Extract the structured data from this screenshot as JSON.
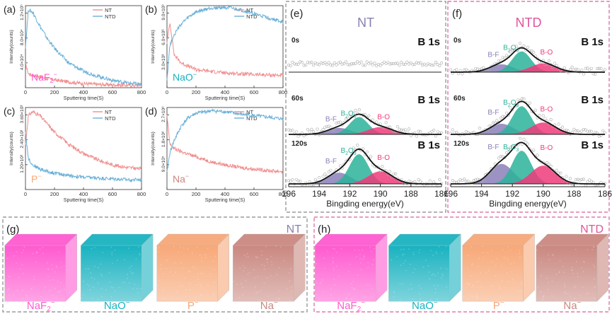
{
  "colors": {
    "nt": "#f08e8e",
    "ntd": "#6ab0d8",
    "bf": "#8b7fb8",
    "b2o3": "#2bb39a",
    "bo": "#ef3b7a",
    "naf2": "#ff5ad0",
    "nao": "#18b2c0",
    "p": "#f7a878",
    "na": "#c98880",
    "dash_nt": "#888888",
    "dash_ntd": "#d9609b",
    "label_nt": "#8a7fb0",
    "label_ntd": "#e0559a"
  },
  "tof_panels": [
    {
      "id": "a",
      "label": "(a)",
      "ion": "NaF2",
      "ion_sup": "−",
      "ylabel": "Intensity(counts)",
      "xlabel": "Sputtering time(S)",
      "xticks": [
        0,
        200,
        400,
        600,
        800
      ],
      "yticks": [
        "4.0×10⁴",
        "8.0×10⁴",
        "1.2×10⁵"
      ],
      "legend": [
        "NT",
        "NTD"
      ]
    },
    {
      "id": "b",
      "label": "(b)",
      "ion": "NaO",
      "ion_sup": "−",
      "ylabel": "Intensity(counts)",
      "xlabel": "Sputtering time(S)",
      "xticks": [
        0,
        200,
        400,
        600,
        800
      ],
      "yticks": [
        "3.0×10³",
        "6.0×10³",
        "9.0×10³"
      ],
      "legend": [
        "NT",
        "NTD"
      ]
    },
    {
      "id": "c",
      "label": "(c)",
      "ion": "P",
      "ion_sup": "−",
      "ylabel": "Intensity(counts)",
      "xlabel": "Sputtering time(S)",
      "xticks": [
        0,
        200,
        400,
        600,
        800
      ],
      "yticks": [
        "1.20×10³",
        "2.40×10³",
        "3.60×10³"
      ],
      "legend": [
        "NT",
        "NTD"
      ]
    },
    {
      "id": "d",
      "label": "(d)",
      "ion": "Na",
      "ion_sup": "−",
      "ylabel": "Intensity(counts)",
      "xlabel": "Sputtering time(S)",
      "xticks": [
        0,
        200,
        400,
        600,
        800
      ],
      "yticks": [
        "9.0×10⁵",
        "1.8×10⁶",
        "2.7×10⁶"
      ],
      "legend": [
        "NT",
        "NTD"
      ]
    }
  ],
  "xps_panels": [
    {
      "id": "e",
      "label": "(e)",
      "title": "NT",
      "title_color": "label_nt",
      "xlabel": "Bingding energy(eV)",
      "xticks": [
        196,
        194,
        192,
        190,
        188,
        186
      ],
      "rows": [
        {
          "time": "0s",
          "orbital": "B 1s",
          "components": []
        },
        {
          "time": "60s",
          "orbital": "B 1s",
          "components": [
            "B-F",
            "B2O3",
            "B-O"
          ]
        },
        {
          "time": "120s",
          "orbital": "B 1s",
          "components": [
            "B-F",
            "B2O3",
            "B-O"
          ]
        }
      ]
    },
    {
      "id": "f",
      "label": "(f)",
      "title": "NTD",
      "title_color": "label_ntd",
      "xlabel": "Bingding energy(eV)",
      "xticks": [
        196,
        194,
        192,
        190,
        188,
        186
      ],
      "rows": [
        {
          "time": "0s",
          "orbital": "B 1s",
          "components": [
            "B-F",
            "B2O3",
            "B-O"
          ]
        },
        {
          "time": "60s",
          "orbital": "B 1s",
          "components": [
            "B-F",
            "B2O3",
            "B-O"
          ]
        },
        {
          "time": "120s",
          "orbital": "B 1s",
          "components": [
            "B-F",
            "B2O3",
            "B-O"
          ]
        }
      ]
    }
  ],
  "cube_panels": [
    {
      "id": "g",
      "label": "(g)",
      "title": "NT",
      "cubes": [
        {
          "ion": "NaF2",
          "sup": "−",
          "color": "naf2"
        },
        {
          "ion": "NaO",
          "sup": "−",
          "color": "nao"
        },
        {
          "ion": "P",
          "sup": "−",
          "color": "p"
        },
        {
          "ion": "Na",
          "sup": "−",
          "color": "na"
        }
      ]
    },
    {
      "id": "h",
      "label": "(h)",
      "title": "NTD",
      "cubes": [
        {
          "ion": "NaF2",
          "sup": "−",
          "color": "naf2"
        },
        {
          "ion": "NaO",
          "sup": "−",
          "color": "nao"
        },
        {
          "ion": "P",
          "sup": "−",
          "color": "p"
        },
        {
          "ion": "Na",
          "sup": "−",
          "color": "na"
        }
      ]
    }
  ],
  "chart_data": [
    {
      "type": "line",
      "panel": "a",
      "x": [
        0,
        20,
        50,
        100,
        150,
        200,
        300,
        400,
        500,
        600,
        700,
        800
      ],
      "series": [
        {
          "name": "NT",
          "values": [
            0.29,
            0.17,
            0.15,
            0.13,
            0.11,
            0.095,
            0.07,
            0.05,
            0.04,
            0.035,
            0.03,
            0.03
          ]
        },
        {
          "name": "NTD",
          "values": [
            0.5,
            0.95,
            0.92,
            0.75,
            0.6,
            0.48,
            0.3,
            0.2,
            0.14,
            0.09,
            0.06,
            0.04
          ]
        }
      ]
    },
    {
      "type": "line",
      "panel": "b",
      "x": [
        0,
        20,
        50,
        100,
        150,
        200,
        300,
        400,
        500,
        600,
        700,
        800
      ],
      "series": [
        {
          "name": "NT",
          "values": [
            0.55,
            0.8,
            0.4,
            0.3,
            0.26,
            0.22,
            0.2,
            0.18,
            0.17,
            0.16,
            0.155,
            0.15
          ]
        },
        {
          "name": "NTD",
          "values": [
            0.1,
            0.52,
            0.65,
            0.78,
            0.86,
            0.92,
            0.97,
            0.98,
            0.95,
            0.9,
            0.85,
            0.8
          ]
        }
      ]
    },
    {
      "type": "line",
      "panel": "c",
      "x": [
        0,
        20,
        50,
        100,
        150,
        200,
        300,
        400,
        500,
        600,
        700,
        800
      ],
      "series": [
        {
          "name": "NT",
          "values": [
            0.55,
            0.9,
            0.95,
            0.9,
            0.8,
            0.7,
            0.55,
            0.44,
            0.36,
            0.3,
            0.27,
            0.25
          ]
        },
        {
          "name": "NTD",
          "values": [
            0.7,
            0.38,
            0.3,
            0.25,
            0.22,
            0.2,
            0.17,
            0.15,
            0.14,
            0.13,
            0.12,
            0.12
          ]
        }
      ]
    },
    {
      "type": "line",
      "panel": "d",
      "x": [
        0,
        20,
        50,
        100,
        150,
        200,
        300,
        400,
        500,
        600,
        700,
        800
      ],
      "series": [
        {
          "name": "NT",
          "values": [
            0.9,
            0.55,
            0.5,
            0.46,
            0.43,
            0.4,
            0.34,
            0.3,
            0.27,
            0.25,
            0.23,
            0.22
          ]
        },
        {
          "name": "NTD",
          "values": [
            0.2,
            0.45,
            0.6,
            0.78,
            0.88,
            0.93,
            0.96,
            0.95,
            0.92,
            0.9,
            0.88,
            0.86
          ]
        }
      ]
    }
  ]
}
